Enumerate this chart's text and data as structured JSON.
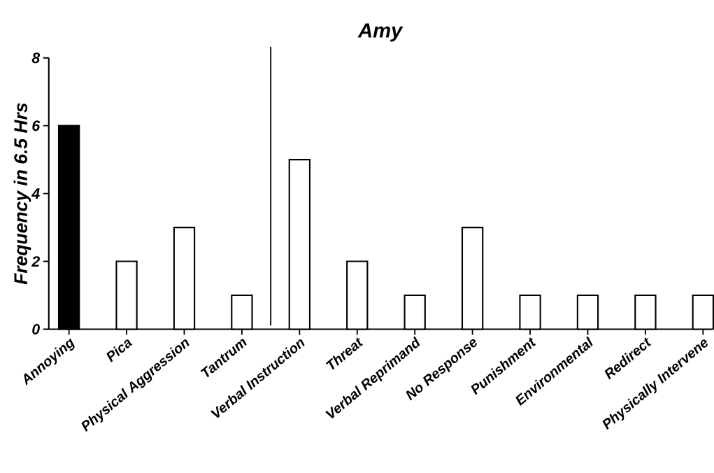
{
  "chart_data": {
    "type": "bar",
    "title": "Amy",
    "ylabel": "Frequency in 6.5 Hrs",
    "categories": [
      "Annoying",
      "Pica",
      "Physical Aggression",
      "Tantrum",
      "Verbal Instruction",
      "Threat",
      "Verbal Reprimand",
      "No Response",
      "Punishment",
      "Environmental",
      "Redirect",
      "Physically Intervene"
    ],
    "values": [
      6,
      2,
      3,
      1,
      5,
      2,
      1,
      3,
      1,
      1,
      1,
      1
    ],
    "colors": [
      "#000000",
      "#000000",
      "#000000",
      "#000000",
      "#000000",
      "#000000",
      "#000000",
      "#000000",
      "#000000",
      "#000000",
      "#000000",
      "#000000"
    ],
    "ylim": [
      0,
      8
    ],
    "yticks": [
      0,
      2,
      4,
      6,
      8
    ]
  }
}
